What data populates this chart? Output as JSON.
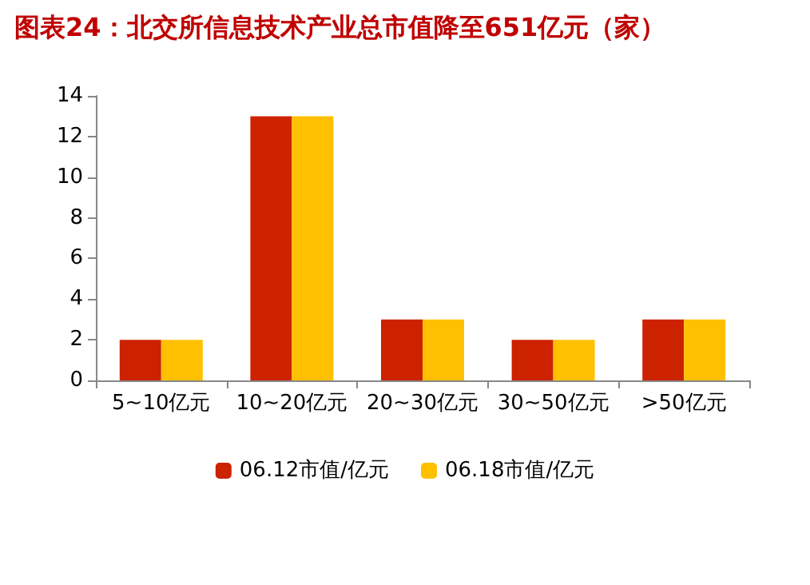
{
  "chart_data": {
    "type": "bar",
    "title": "图表24：北交所信息技术产业总市值降至651亿元（家）",
    "categories": [
      "5~10亿元",
      "10~20亿元",
      "20~30亿元",
      "30~50亿元",
      ">50亿元"
    ],
    "series": [
      {
        "name": "06.12市值/亿元",
        "color": "#cc2200",
        "values": [
          2,
          13,
          3,
          2,
          3
        ]
      },
      {
        "name": "06.18市值/亿元",
        "color": "#ffc000",
        "values": [
          2,
          13,
          3,
          2,
          3
        ]
      }
    ],
    "ylim": [
      0,
      14
    ],
    "yticks": [
      0,
      2,
      4,
      6,
      8,
      10,
      12,
      14
    ],
    "grid": false,
    "legend": "bottom"
  }
}
